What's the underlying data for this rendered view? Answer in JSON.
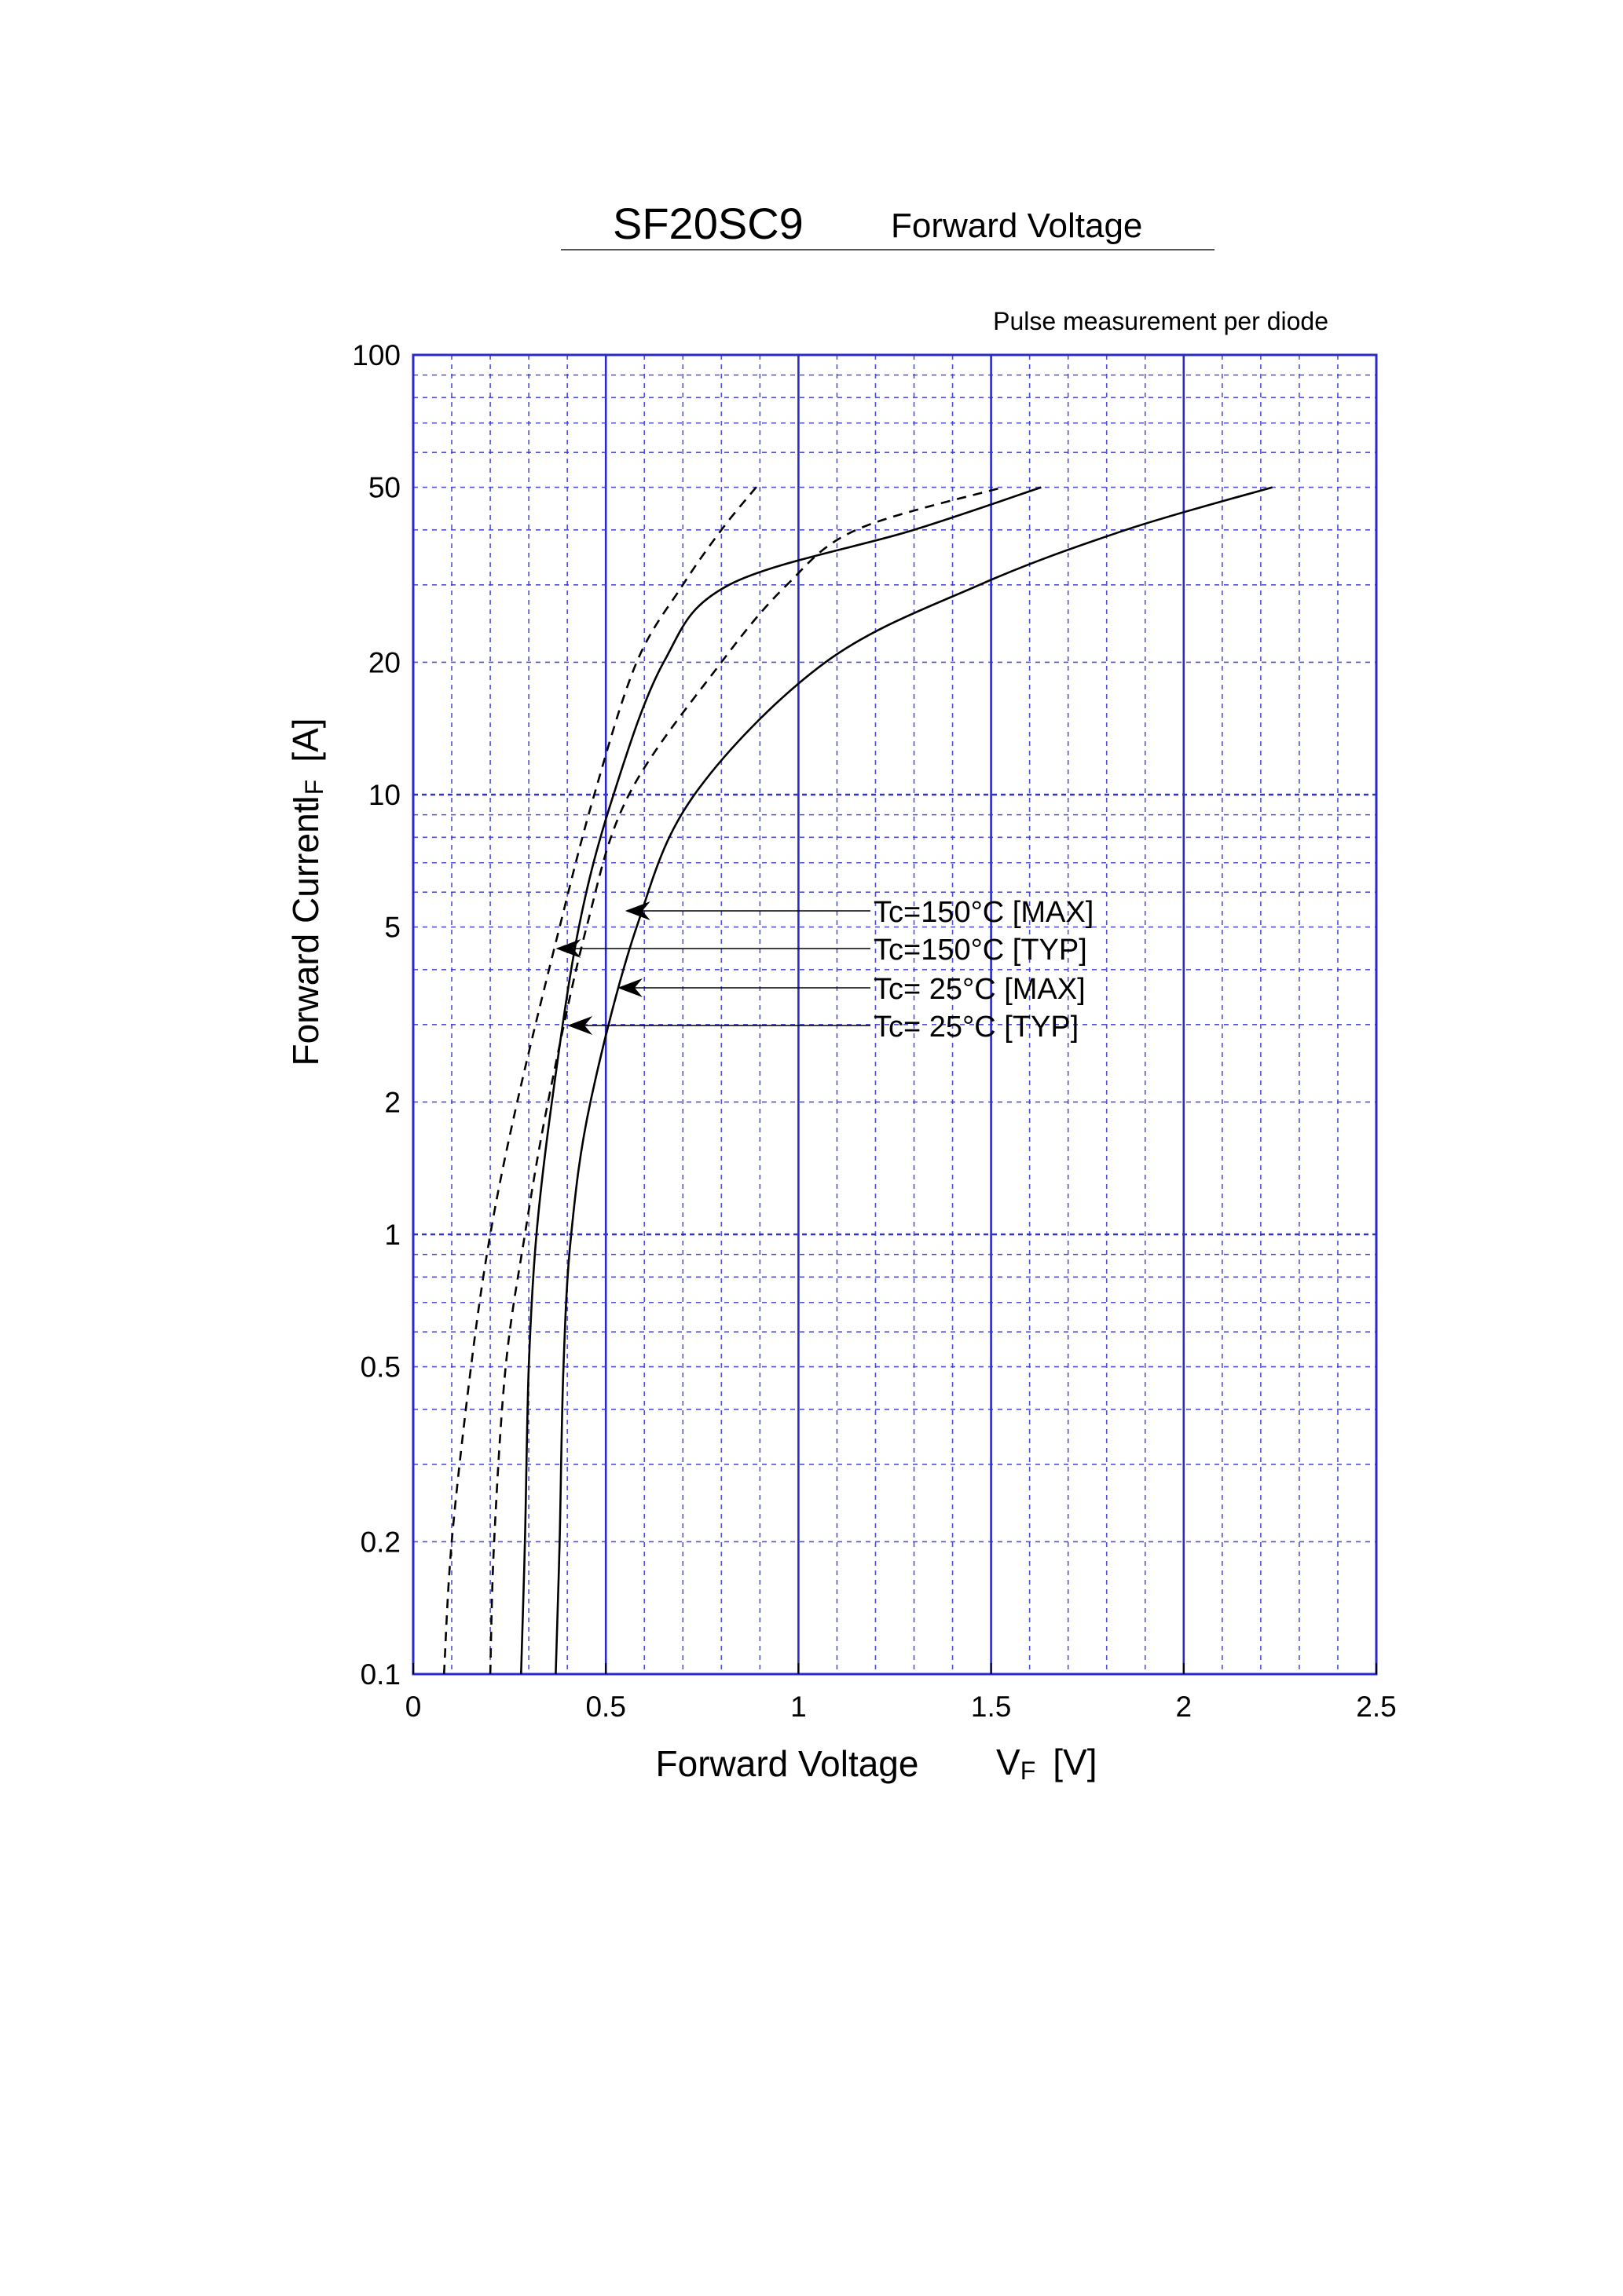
{
  "chart_data": {
    "type": "line",
    "title_part_number": "SF20SC9",
    "title_subject": "Forward Voltage",
    "note": "Pulse measurement per diode",
    "xlabel": "Forward Voltage",
    "xlabel_symbol_main": "V",
    "xlabel_symbol_sub": "F",
    "xlabel_unit": "[V]",
    "ylabel": "Forward Current",
    "ylabel_symbol_main": "I",
    "ylabel_symbol_sub": "F",
    "ylabel_unit": "[A]",
    "xlim": [
      0,
      2.5
    ],
    "ylim": [
      0.1,
      100
    ],
    "y_scale": "log",
    "x_ticks": [
      {
        "value": 0,
        "label": "0"
      },
      {
        "value": 0.5,
        "label": "0.5"
      },
      {
        "value": 1,
        "label": "1"
      },
      {
        "value": 1.5,
        "label": "1.5"
      },
      {
        "value": 2,
        "label": "2"
      },
      {
        "value": 2.5,
        "label": "2.5"
      }
    ],
    "y_ticks": [
      {
        "value": 0.1,
        "label": "0.1"
      },
      {
        "value": 0.2,
        "label": "0.2"
      },
      {
        "value": 0.5,
        "label": "0.5"
      },
      {
        "value": 1,
        "label": "1"
      },
      {
        "value": 2,
        "label": "2"
      },
      {
        "value": 5,
        "label": "5"
      },
      {
        "value": 10,
        "label": "10"
      },
      {
        "value": 20,
        "label": "20"
      },
      {
        "value": 50,
        "label": "50"
      },
      {
        "value": 100,
        "label": "100"
      }
    ],
    "grid": true,
    "colors": {
      "grid": "#3333cc",
      "curve": "#000000",
      "frame": "#2a2ac8"
    },
    "series": [
      {
        "name": "Tc=150°C [MAX]",
        "style": "solid",
        "points": [
          [
            0.28,
            0.1
          ],
          [
            0.29,
            0.2
          ],
          [
            0.3,
            0.5
          ],
          [
            0.32,
            1
          ],
          [
            0.36,
            2
          ],
          [
            0.43,
            5
          ],
          [
            0.52,
            10
          ],
          [
            0.65,
            20
          ],
          [
            0.82,
            30
          ],
          [
            1.3,
            40
          ],
          [
            1.63,
            50
          ]
        ]
      },
      {
        "name": "Tc=150°C [TYP]",
        "style": "dashed",
        "points": [
          [
            0.08,
            0.1
          ],
          [
            0.1,
            0.2
          ],
          [
            0.15,
            0.5
          ],
          [
            0.2,
            1
          ],
          [
            0.27,
            2
          ],
          [
            0.38,
            5
          ],
          [
            0.47,
            10
          ],
          [
            0.58,
            20
          ],
          [
            0.7,
            30
          ],
          [
            0.8,
            40
          ],
          [
            0.89,
            50
          ]
        ]
      },
      {
        "name": "Tc=  25°C [MAX]",
        "style": "solid",
        "points": [
          [
            0.37,
            0.1
          ],
          [
            0.38,
            0.2
          ],
          [
            0.39,
            0.5
          ],
          [
            0.41,
            1
          ],
          [
            0.46,
            2
          ],
          [
            0.58,
            5
          ],
          [
            0.73,
            10
          ],
          [
            1.07,
            20
          ],
          [
            1.47,
            30
          ],
          [
            1.85,
            40
          ],
          [
            2.23,
            50
          ]
        ]
      },
      {
        "name": "Tc=  25°C [TYP]",
        "style": "dashed",
        "points": [
          [
            0.2,
            0.1
          ],
          [
            0.21,
            0.2
          ],
          [
            0.24,
            0.5
          ],
          [
            0.29,
            1
          ],
          [
            0.35,
            2
          ],
          [
            0.45,
            5
          ],
          [
            0.56,
            10
          ],
          [
            0.8,
            20
          ],
          [
            0.97,
            30
          ],
          [
            1.15,
            40
          ],
          [
            1.53,
            50
          ]
        ]
      }
    ],
    "annotations": [
      {
        "text": "Tc=150°C [MAX]",
        "target": [
          0.55,
          5.4
        ]
      },
      {
        "text": "Tc=150°C [TYP]",
        "target": [
          0.37,
          4.4
        ]
      },
      {
        "text": "Tc=  25°C [MAX]",
        "target": [
          0.53,
          3.5
        ]
      },
      {
        "text": "Tc=  25°C [TYP]",
        "target": [
          0.4,
          2.8
        ]
      }
    ]
  }
}
